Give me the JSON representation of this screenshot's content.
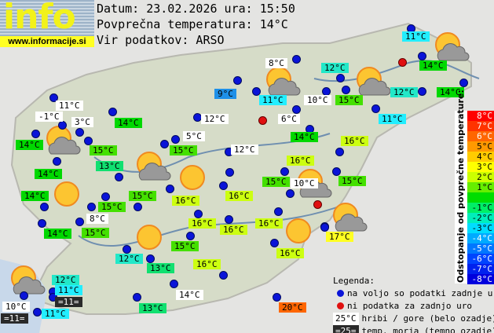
{
  "header": {
    "logo_text": "info",
    "logo_url": "www.informacije.si",
    "date_line": "Datum: 23.02.2026 ura: 15:50",
    "avg_line": "Povprečna temperatura: 14°C",
    "source_line": "Vir podatkov: ARSO"
  },
  "colors": {
    "white": "#ffffff",
    "dark": "#2a2a2a",
    "c9": "#1e90e8",
    "c11": "#22eeff",
    "c12": "#22e8c8",
    "c13": "#11e070",
    "c14": "#00d800",
    "c15": "#44e000",
    "c16": "#ccff11",
    "c17": "#ffff22",
    "c20": "#ff6600",
    "station": "#0a14d8",
    "missing": "#e01010"
  },
  "stations": [
    {
      "t": "11°C",
      "c": "c11"
    },
    {
      "t": "8°C",
      "c": "white"
    },
    {
      "t": "12°C",
      "c": "c12"
    },
    {
      "t": "9°C",
      "c": "c9"
    },
    {
      "t": "11°C",
      "c": "c11"
    },
    {
      "t": "10°C",
      "c": "white"
    },
    {
      "t": "15°C",
      "c": "c15"
    },
    {
      "t": "12°C",
      "c": "c12"
    },
    {
      "t": "14°C",
      "c": "c14"
    },
    {
      "t": "14°C",
      "c": "c14"
    },
    {
      "t": "11°C",
      "c": "c11"
    },
    {
      "t": "11°C",
      "c": "white"
    },
    {
      "t": "-1°C",
      "c": "white"
    },
    {
      "t": "3°C",
      "c": "white"
    },
    {
      "t": "14°C",
      "c": "c14"
    },
    {
      "t": "12°C",
      "c": "white"
    },
    {
      "t": "6°C",
      "c": "white"
    },
    {
      "t": "14°C",
      "c": "c14"
    },
    {
      "t": "5°C",
      "c": "white"
    },
    {
      "t": "16°C",
      "c": "c16"
    },
    {
      "t": "14°C",
      "c": "c14"
    },
    {
      "t": "15°C",
      "c": "c15"
    },
    {
      "t": "15°C",
      "c": "c15"
    },
    {
      "t": "12°C",
      "c": "white"
    },
    {
      "t": "16°C",
      "c": "c16"
    },
    {
      "t": "13°C",
      "c": "c13"
    },
    {
      "t": "14°C",
      "c": "c14"
    },
    {
      "t": "15°C",
      "c": "c15"
    },
    {
      "t": "10°C",
      "c": "white"
    },
    {
      "t": "15°C",
      "c": "c15"
    },
    {
      "t": "14°C",
      "c": "c14"
    },
    {
      "t": "16°C",
      "c": "c16"
    },
    {
      "t": "16°C",
      "c": "c16"
    },
    {
      "t": "15°C",
      "c": "c15"
    },
    {
      "t": "15°C",
      "c": "c15"
    },
    {
      "t": "8°C",
      "c": "white"
    },
    {
      "t": "14°C",
      "c": "c14"
    },
    {
      "t": "15°C",
      "c": "c15"
    },
    {
      "t": "16°C",
      "c": "c16"
    },
    {
      "t": "16°C",
      "c": "c16"
    },
    {
      "t": "16°C",
      "c": "c16"
    },
    {
      "t": "16°C",
      "c": "c16"
    },
    {
      "t": "15°C",
      "c": "c15"
    },
    {
      "t": "17°C",
      "c": "c17"
    },
    {
      "t": "12°C",
      "c": "c12"
    },
    {
      "t": "13°C",
      "c": "c13"
    },
    {
      "t": "16°C",
      "c": "c16"
    },
    {
      "t": "12°C",
      "c": "c12"
    },
    {
      "t": "11°C",
      "c": "c11"
    },
    {
      "t": "=11=",
      "c": "dark"
    },
    {
      "t": "10°C",
      "c": "white"
    },
    {
      "t": "=11=",
      "c": "dark"
    },
    {
      "t": "11°C",
      "c": "c11"
    },
    {
      "t": "13°C",
      "c": "c13"
    },
    {
      "t": "14°C",
      "c": "white"
    },
    {
      "t": "20°C",
      "c": "c20"
    }
  ],
  "weather_icons": [
    "sun-cloud",
    "sun-cloud",
    "sun-cloud",
    "sun-cloud",
    "sun-cloud",
    "sun-cloud",
    "sun-cloud",
    "sun-cloud",
    "sun",
    "sun",
    "sun",
    "sun"
  ],
  "scale": {
    "title": "Odstopanje od povprečne temperature:",
    "rows": [
      {
        "t": "8°C",
        "c": "#ff0000"
      },
      {
        "t": "7°C",
        "c": "#ff3300"
      },
      {
        "t": "6°C",
        "c": "#ff6600"
      },
      {
        "t": "5°C",
        "c": "#ff9900"
      },
      {
        "t": "4°C",
        "c": "#ffcc00"
      },
      {
        "t": "3°C",
        "c": "#ffff00"
      },
      {
        "t": "2°C",
        "c": "#ccff00"
      },
      {
        "t": "1°C",
        "c": "#66ee00"
      },
      {
        "t": "",
        "c": "#00dd00"
      },
      {
        "t": "-1°C",
        "c": "#00ee66"
      },
      {
        "t": "-2°C",
        "c": "#00eebb"
      },
      {
        "t": "-3°C",
        "c": "#00ddff"
      },
      {
        "t": "-4°C",
        "c": "#00aaff"
      },
      {
        "t": "-5°C",
        "c": "#0077ff"
      },
      {
        "t": "-6°C",
        "c": "#0044ff"
      },
      {
        "t": "-7°C",
        "c": "#0022ee"
      },
      {
        "t": "-8°C",
        "c": "#0000dd"
      }
    ]
  },
  "legend": {
    "title": "Legenda:",
    "blue_dot": "na voljo so podatki zadnje ure",
    "red_dot": "ni podatka za zadnjo uro",
    "mountain_sample": "25°C",
    "mountain_text": "hribi / gore (belo ozadje)",
    "sea_sample": "=25=",
    "sea_text": "temp. morja (temno ozadje)"
  }
}
